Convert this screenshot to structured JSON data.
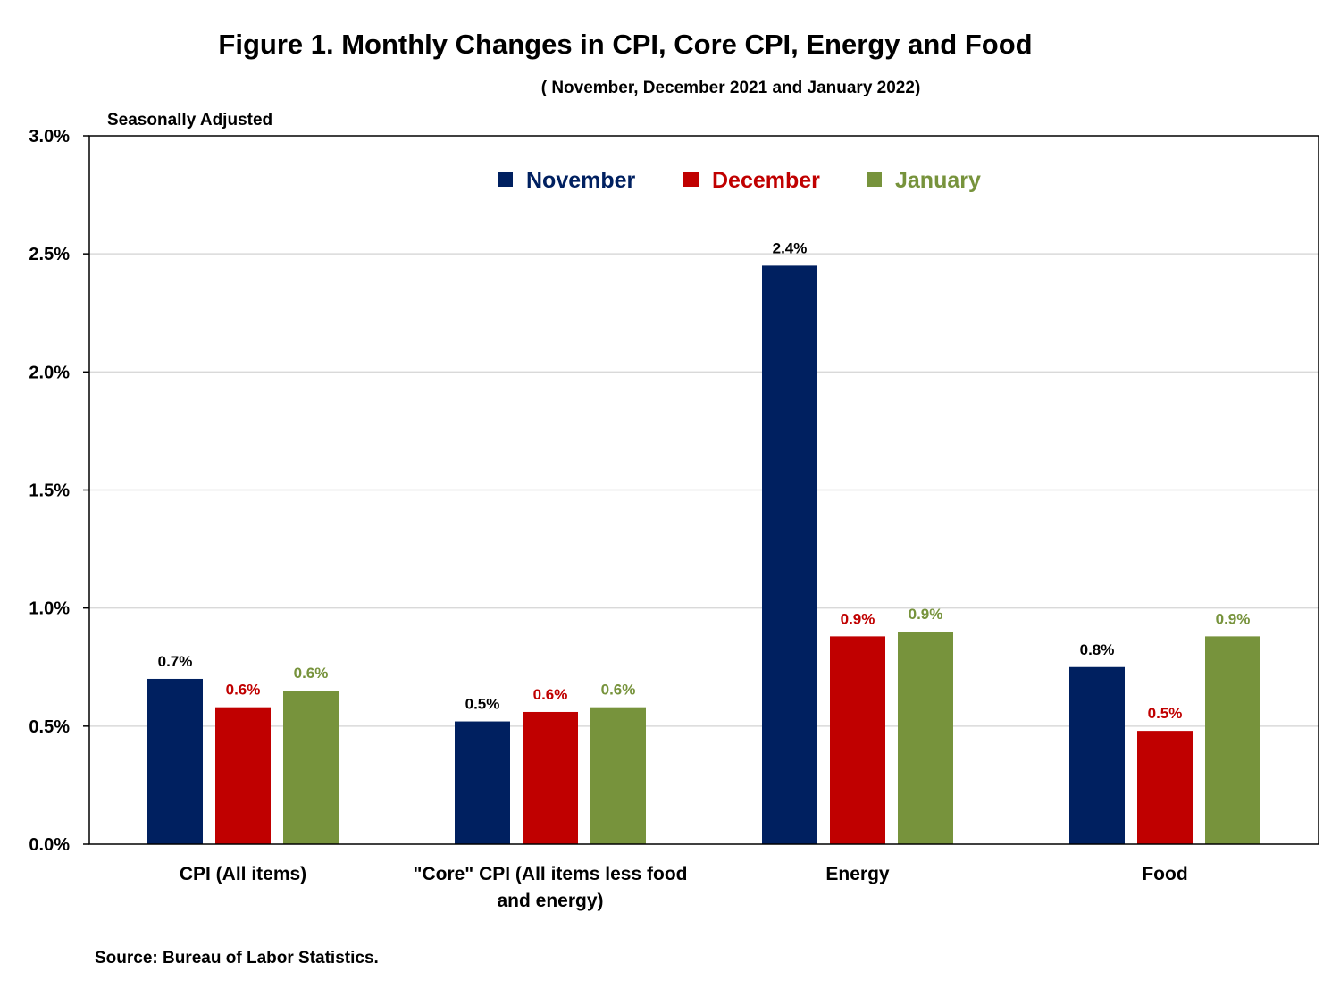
{
  "chart_data": {
    "type": "bar",
    "title": "Figure 1. Monthly Changes in CPI, Core CPI, Energy and Food",
    "subtitle": "( November, December 2021 and January 2022)",
    "ylabel": "Seasonally Adjusted",
    "ylim": [
      0,
      3.0
    ],
    "yticks": [
      0,
      0.5,
      1.0,
      1.5,
      2.0,
      2.5,
      3.0
    ],
    "ytick_labels": [
      "0.0%",
      "0.5%",
      "1.0%",
      "1.5%",
      "2.0%",
      "2.5%",
      "3.0%"
    ],
    "categories": [
      [
        "CPI (All items)"
      ],
      [
        "\"Core\" CPI (All items less food",
        "and energy)"
      ],
      [
        "Energy"
      ],
      [
        "Food"
      ]
    ],
    "series": [
      {
        "name": "November",
        "color": "#002060",
        "values": [
          0.7,
          0.52,
          2.45,
          0.75
        ],
        "labels": [
          "0.7%",
          "0.5%",
          "2.4%",
          "0.8%"
        ],
        "label_color": "#000000"
      },
      {
        "name": "December",
        "color": "#C00000",
        "values": [
          0.58,
          0.56,
          0.88,
          0.48
        ],
        "labels": [
          "0.6%",
          "0.6%",
          "0.9%",
          "0.5%"
        ],
        "label_color": "#C00000"
      },
      {
        "name": "January",
        "color": "#77933C",
        "values": [
          0.65,
          0.58,
          0.9,
          0.88
        ],
        "labels": [
          "0.6%",
          "0.6%",
          "0.9%",
          "0.9%"
        ],
        "label_color": "#77933C"
      }
    ],
    "grid": true,
    "legend_position": "top-center"
  },
  "source": "Source: Bureau of Labor Statistics."
}
